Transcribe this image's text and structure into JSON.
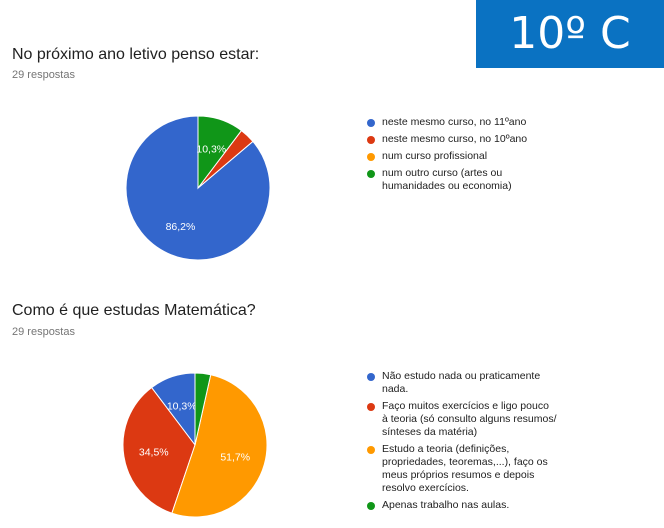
{
  "badge": {
    "label": "10º C",
    "color": "#0a72c2"
  },
  "charts": [
    {
      "title": "No próximo ano letivo penso estar:",
      "responses": "29 respostas",
      "chart_data": {
        "type": "pie",
        "title": "No próximo ano letivo penso estar:",
        "start_angle_deg": 90,
        "direction": "counterclockwise",
        "categories": [
          "neste mesmo curso, no 11ºano",
          "neste mesmo curso, no 10ºano",
          "num curso profissional",
          "num outro curso (artes ou humanidades ou economia)"
        ],
        "values": [
          86.2,
          3.5,
          0,
          10.3
        ],
        "colors": [
          "#3366cc",
          "#dc3912",
          "#ff9900",
          "#109618"
        ],
        "data_labels": [
          "86,2%",
          "",
          "",
          "10,3%"
        ],
        "legend": "right"
      },
      "legend_lines": [
        [
          "neste mesmo curso, no 11ºano"
        ],
        [
          "neste mesmo curso, no 10ºano"
        ],
        [
          "num curso profissional"
        ],
        [
          "num outro curso (artes ou",
          "humanidades ou economia)"
        ]
      ]
    },
    {
      "title": "Como é que estudas Matemática?",
      "responses": "29 respostas",
      "chart_data": {
        "type": "pie",
        "title": "Como é que estudas Matemática?",
        "start_angle_deg": 90,
        "direction": "counterclockwise",
        "categories": [
          "Não estudo nada ou praticamente nada.",
          "Faço muitos exercícios e ligo pouco à teoria (só consulto alguns resumos/ sínteses da matéria)",
          "Estudo a teoria (definições, propriedades, teoremas,...), faço os meus próprios resumos e depois resolvo exercícios.",
          "Apenas trabalho nas aulas."
        ],
        "values": [
          10.3,
          34.5,
          51.7,
          3.5
        ],
        "colors": [
          "#3366cc",
          "#dc3912",
          "#ff9900",
          "#109618"
        ],
        "data_labels": [
          "10,3%",
          "34,5%",
          "51,7%",
          ""
        ],
        "legend": "right"
      },
      "legend_lines": [
        [
          "Não estudo nada ou praticamente",
          "nada."
        ],
        [
          "Faço muitos exercícios e ligo pouco",
          "à teoria (só consulto alguns resumos/",
          "sínteses da matéria)"
        ],
        [
          "Estudo a teoria (definições,",
          "propriedades, teoremas,...), faço os",
          "meus próprios resumos e depois",
          "resolvo exercícios."
        ],
        [
          "Apenas trabalho nas aulas."
        ]
      ]
    }
  ]
}
